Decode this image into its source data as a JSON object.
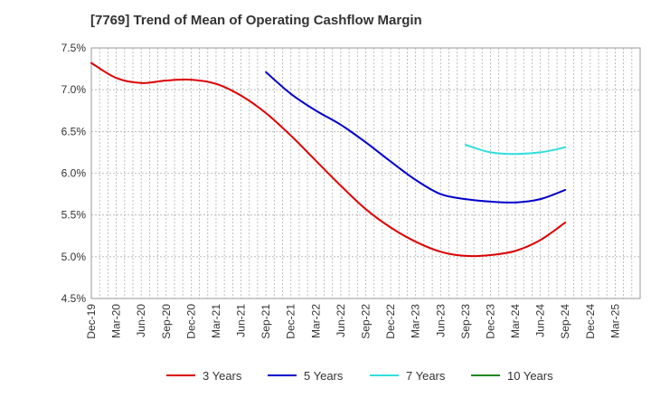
{
  "chart_data": {
    "type": "line",
    "title": "[7769]  Trend of Mean of Operating Cashflow Margin",
    "xlabel": "",
    "ylabel": "",
    "x_ticks": [
      "Dec-19",
      "Mar-20",
      "Jun-20",
      "Sep-20",
      "Dec-20",
      "Mar-21",
      "Jun-21",
      "Sep-21",
      "Dec-21",
      "Mar-22",
      "Jun-22",
      "Sep-22",
      "Dec-22",
      "Mar-23",
      "Jun-23",
      "Sep-23",
      "Dec-23",
      "Mar-24",
      "Jun-24",
      "Sep-24",
      "Dec-24",
      "Mar-25"
    ],
    "y_ticks": [
      "4.5%",
      "5.0%",
      "5.5%",
      "6.0%",
      "6.5%",
      "7.0%",
      "7.5%"
    ],
    "ylim": [
      4.5,
      7.5
    ],
    "grid": true,
    "legend_position": "bottom",
    "series": [
      {
        "name": "3 Years",
        "color": "#dd0000",
        "start_index": 0,
        "values": [
          7.32,
          7.14,
          7.08,
          7.11,
          7.12,
          7.07,
          6.93,
          6.72,
          6.45,
          6.15,
          5.85,
          5.57,
          5.35,
          5.18,
          5.06,
          5.01,
          5.02,
          5.07,
          5.2,
          5.41
        ]
      },
      {
        "name": "5 Years",
        "color": "#0000cc",
        "start_index": 7,
        "values": [
          7.21,
          6.95,
          6.75,
          6.58,
          6.37,
          6.14,
          5.92,
          5.75,
          5.69,
          5.66,
          5.65,
          5.69,
          5.8
        ]
      },
      {
        "name": "7 Years",
        "color": "#33dddd",
        "start_index": 15,
        "values": [
          6.34,
          6.25,
          6.23,
          6.25,
          6.31
        ]
      },
      {
        "name": "10 Years",
        "color": "#228822",
        "start_index": 0,
        "values": []
      }
    ]
  }
}
